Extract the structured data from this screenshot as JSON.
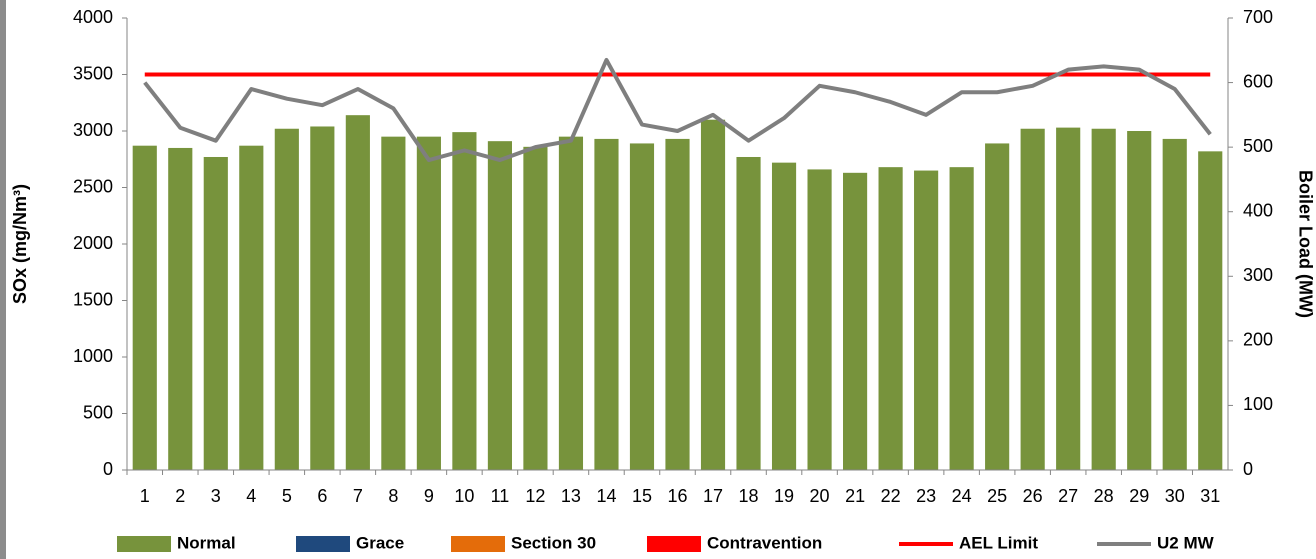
{
  "chart_data": {
    "type": "bar",
    "ylabel": "SOx (mg/Nm³)",
    "y2label": "Boiler Load (MW)",
    "categories": [
      "1",
      "2",
      "3",
      "4",
      "5",
      "6",
      "7",
      "8",
      "9",
      "10",
      "11",
      "12",
      "13",
      "14",
      "15",
      "16",
      "17",
      "18",
      "19",
      "20",
      "21",
      "22",
      "23",
      "24",
      "25",
      "26",
      "27",
      "28",
      "29",
      "30",
      "31"
    ],
    "ylim": [
      0,
      4000
    ],
    "yticks": [
      0,
      500,
      1000,
      1500,
      2000,
      2500,
      3000,
      3500,
      4000
    ],
    "y2lim": [
      0,
      700
    ],
    "y2ticks": [
      0,
      100,
      200,
      300,
      400,
      500,
      600,
      700
    ],
    "grid": false,
    "legend": "bottom",
    "series": [
      {
        "name": "Normal",
        "type": "bar",
        "color": "#77933c",
        "values": [
          2870,
          2850,
          2770,
          2870,
          3020,
          3040,
          3140,
          2950,
          2950,
          2990,
          2910,
          2860,
          2950,
          2930,
          2890,
          2930,
          3100,
          2770,
          2720,
          2660,
          2630,
          2680,
          2650,
          2680,
          2890,
          3020,
          3030,
          3020,
          3000,
          2930,
          2820
        ]
      },
      {
        "name": "Grace",
        "type": "bar",
        "color": "#1f497d"
      },
      {
        "name": "Section 30",
        "type": "bar",
        "color": "#e46c0a"
      },
      {
        "name": "Contravention",
        "type": "bar",
        "color": "#ff0000"
      },
      {
        "name": "AEL Limit",
        "type": "line",
        "color": "#ff0000",
        "values": [
          3500,
          3500,
          3500,
          3500,
          3500,
          3500,
          3500,
          3500,
          3500,
          3500,
          3500,
          3500,
          3500,
          3500,
          3500,
          3500,
          3500,
          3500,
          3500,
          3500,
          3500,
          3500,
          3500,
          3500,
          3500,
          3500,
          3500,
          3500,
          3500,
          3500,
          3500
        ]
      },
      {
        "name": "U2 MW",
        "type": "line",
        "axis": "y2",
        "color": "#7f7f7f",
        "values": [
          600,
          530,
          510,
          590,
          575,
          565,
          590,
          560,
          480,
          495,
          480,
          500,
          510,
          635,
          535,
          525,
          550,
          510,
          545,
          595,
          585,
          570,
          550,
          585,
          585,
          595,
          620,
          625,
          620,
          590,
          520
        ]
      }
    ]
  }
}
